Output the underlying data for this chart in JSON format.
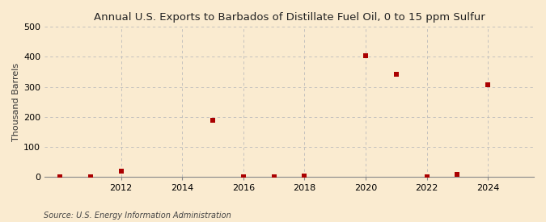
{
  "title": "Annual U.S. Exports to Barbados of Distillate Fuel Oil, 0 to 15 ppm Sulfur",
  "ylabel": "Thousand Barrels",
  "source_text": "Source: U.S. Energy Information Administration",
  "x_data": [
    2010,
    2011,
    2012,
    2015,
    2016,
    2017,
    2018,
    2020,
    2021,
    2022,
    2023,
    2024
  ],
  "y_data": [
    0,
    0,
    20,
    188,
    0,
    1,
    2,
    405,
    342,
    1,
    8,
    307
  ],
  "marker_color": "#aa0000",
  "marker_size": 16,
  "background_color": "#faebd0",
  "grid_color": "#bbbbbb",
  "ylim": [
    0,
    500
  ],
  "yticks": [
    0,
    100,
    200,
    300,
    400,
    500
  ],
  "xlim": [
    2009.5,
    2025.5
  ],
  "xticks": [
    2012,
    2014,
    2016,
    2018,
    2020,
    2022,
    2024
  ],
  "title_fontsize": 9.5,
  "label_fontsize": 8,
  "tick_fontsize": 8,
  "source_fontsize": 7
}
